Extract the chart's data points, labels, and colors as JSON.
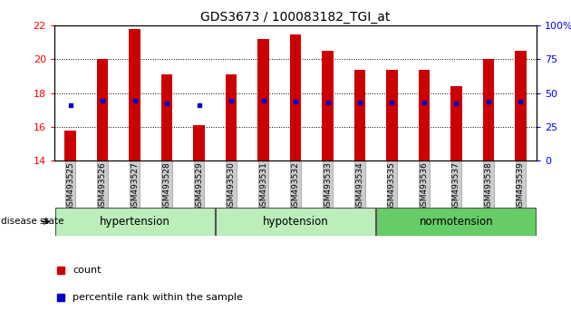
{
  "title": "GDS3673 / 100083182_TGI_at",
  "samples": [
    "GSM493525",
    "GSM493526",
    "GSM493527",
    "GSM493528",
    "GSM493529",
    "GSM493530",
    "GSM493531",
    "GSM493532",
    "GSM493533",
    "GSM493534",
    "GSM493535",
    "GSM493536",
    "GSM493537",
    "GSM493538",
    "GSM493539"
  ],
  "bar_values": [
    15.8,
    20.0,
    21.8,
    19.1,
    16.1,
    19.1,
    21.2,
    21.5,
    20.5,
    19.4,
    19.4,
    19.4,
    18.4,
    20.0,
    20.5
  ],
  "blue_values": [
    17.3,
    17.55,
    17.55,
    17.4,
    17.3,
    17.55,
    17.55,
    17.5,
    17.45,
    17.45,
    17.45,
    17.45,
    17.4,
    17.5,
    17.5
  ],
  "bar_color": "#cc0000",
  "blue_color": "#0000cc",
  "ylim_left": [
    14,
    22
  ],
  "ylim_right": [
    0,
    100
  ],
  "yticks_left": [
    14,
    16,
    18,
    20,
    22
  ],
  "yticks_right": [
    0,
    25,
    50,
    75,
    100
  ],
  "ytick_labels_right": [
    "0",
    "25",
    "50",
    "75",
    "100%"
  ],
  "group_colors": [
    "#bbeebb",
    "#bbeebb",
    "#66cc66"
  ],
  "group_labels": [
    "hypertension",
    "hypotension",
    "normotension"
  ],
  "group_ranges": [
    [
      0,
      4
    ],
    [
      5,
      9
    ],
    [
      10,
      14
    ]
  ],
  "disease_state_label": "disease state",
  "legend_count_label": "count",
  "legend_pct_label": "percentile rank within the sample",
  "bar_color_legend": "#cc0000",
  "blue_color_legend": "#0000cc",
  "bar_width": 0.35,
  "background_color": "#ffffff",
  "grid_yticks": [
    16,
    18,
    20
  ],
  "left_ytick_color": "red",
  "right_ytick_color": "blue"
}
